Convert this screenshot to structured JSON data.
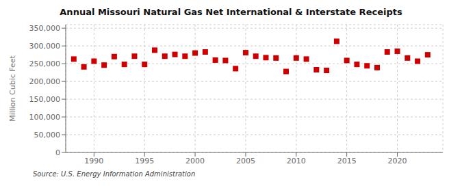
{
  "chart_data": {
    "type": "scatter",
    "title": "Annual Missouri Natural Gas Net International & Interstate Receipts",
    "ylabel": "Million Cubic Feet",
    "annotations": [
      "Source: U.S. Energy Information Administration"
    ],
    "x": [
      1988,
      1989,
      1990,
      1991,
      1992,
      1993,
      1994,
      1995,
      1996,
      1997,
      1998,
      1999,
      2000,
      2001,
      2002,
      2003,
      2004,
      2005,
      2006,
      2007,
      2008,
      2009,
      2010,
      2011,
      2012,
      2013,
      2014,
      2015,
      2016,
      2017,
      2018,
      2019,
      2020,
      2021,
      2022,
      2023
    ],
    "values": [
      263000,
      241000,
      257000,
      246000,
      270000,
      248000,
      271000,
      248000,
      288000,
      271000,
      276000,
      271000,
      280000,
      283000,
      260000,
      259000,
      236000,
      281000,
      271000,
      267000,
      266000,
      228000,
      266000,
      263000,
      233000,
      231000,
      313000,
      259000,
      248000,
      244000,
      239000,
      283000,
      285000,
      266000,
      257000,
      275000
    ],
    "color": "#cc0000",
    "marker": "square",
    "xlim": [
      1987.2,
      2024.5
    ],
    "xticks": [
      1990,
      1995,
      2000,
      2005,
      2010,
      2015,
      2020
    ],
    "ylim": [
      0,
      360000
    ],
    "yticks": [
      0,
      {
        "value": 50000,
        "label": "50,000"
      },
      {
        "value": 100000,
        "label": "100,000"
      },
      {
        "value": 150000,
        "label": "150,000"
      },
      {
        "value": 200000,
        "label": "200,000"
      },
      {
        "value": 250000,
        "label": "250,000"
      },
      {
        "value": 300000,
        "label": "300,000"
      },
      {
        "value": 350000,
        "label": "350,000"
      }
    ],
    "grid": true
  }
}
